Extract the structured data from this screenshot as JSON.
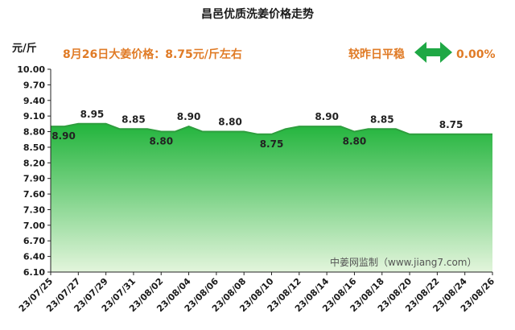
{
  "chart_data": {
    "type": "area",
    "title": "昌邑优质洗姜价格走势",
    "ylabel": "元/斤",
    "headline": {
      "price_text": "8月26日大姜价格：8.75元/斤左右",
      "compare_label": "较昨日平稳",
      "compare_value": "0.00%"
    },
    "yticks": [
      "10.00",
      "9.70",
      "9.40",
      "9.10",
      "8.80",
      "8.50",
      "8.20",
      "7.90",
      "7.60",
      "7.30",
      "7.00",
      "6.70",
      "6.40",
      "6.10"
    ],
    "ylim": [
      6.1,
      10.0
    ],
    "xticks": [
      "23/07/25",
      "23/07/27",
      "23/07/29",
      "23/07/31",
      "23/08/02",
      "23/08/04",
      "23/08/06",
      "23/08/08",
      "23/08/10",
      "23/08/12",
      "23/08/14",
      "23/08/16",
      "23/08/18",
      "23/08/20",
      "23/08/22",
      "23/08/24",
      "23/08/26"
    ],
    "x": [
      "23/07/25",
      "23/07/26",
      "23/07/27",
      "23/07/28",
      "23/07/29",
      "23/07/30",
      "23/07/31",
      "23/08/01",
      "23/08/02",
      "23/08/03",
      "23/08/04",
      "23/08/05",
      "23/08/06",
      "23/08/07",
      "23/08/08",
      "23/08/09",
      "23/08/10",
      "23/08/11",
      "23/08/12",
      "23/08/13",
      "23/08/14",
      "23/08/15",
      "23/08/16",
      "23/08/17",
      "23/08/18",
      "23/08/19",
      "23/08/20",
      "23/08/21",
      "23/08/22",
      "23/08/23",
      "23/08/24",
      "23/08/25",
      "23/08/26"
    ],
    "values": [
      8.9,
      8.9,
      8.95,
      8.95,
      8.95,
      8.85,
      8.85,
      8.85,
      8.8,
      8.8,
      8.9,
      8.8,
      8.8,
      8.8,
      8.8,
      8.75,
      8.75,
      8.85,
      8.9,
      8.9,
      8.9,
      8.9,
      8.8,
      8.85,
      8.85,
      8.85,
      8.75,
      8.75,
      8.75,
      8.75,
      8.75,
      8.75,
      8.75
    ],
    "data_labels": [
      {
        "x": "23/07/25",
        "text": "8.90",
        "pos": "below"
      },
      {
        "x": "23/07/28",
        "text": "8.95",
        "pos": "above"
      },
      {
        "x": "23/07/31",
        "text": "8.85",
        "pos": "above"
      },
      {
        "x": "23/08/02",
        "text": "8.80",
        "pos": "below"
      },
      {
        "x": "23/08/04",
        "text": "8.90",
        "pos": "above"
      },
      {
        "x": "23/08/07",
        "text": "8.80",
        "pos": "above"
      },
      {
        "x": "23/08/10",
        "text": "8.75",
        "pos": "below"
      },
      {
        "x": "23/08/14",
        "text": "8.90",
        "pos": "above"
      },
      {
        "x": "23/08/16",
        "text": "8.80",
        "pos": "below"
      },
      {
        "x": "23/08/18",
        "text": "8.85",
        "pos": "above"
      },
      {
        "x": "23/08/23",
        "text": "8.75",
        "pos": "above"
      }
    ],
    "watermark": "中姜网监制（www.jiang7.com）",
    "grid": false,
    "colors": {
      "line": "#2e9e3e",
      "fill_top": "#22b43c",
      "fill_bottom": "#e3f5dc",
      "headline": "#e07b26",
      "arrow": "#1fa845"
    }
  }
}
